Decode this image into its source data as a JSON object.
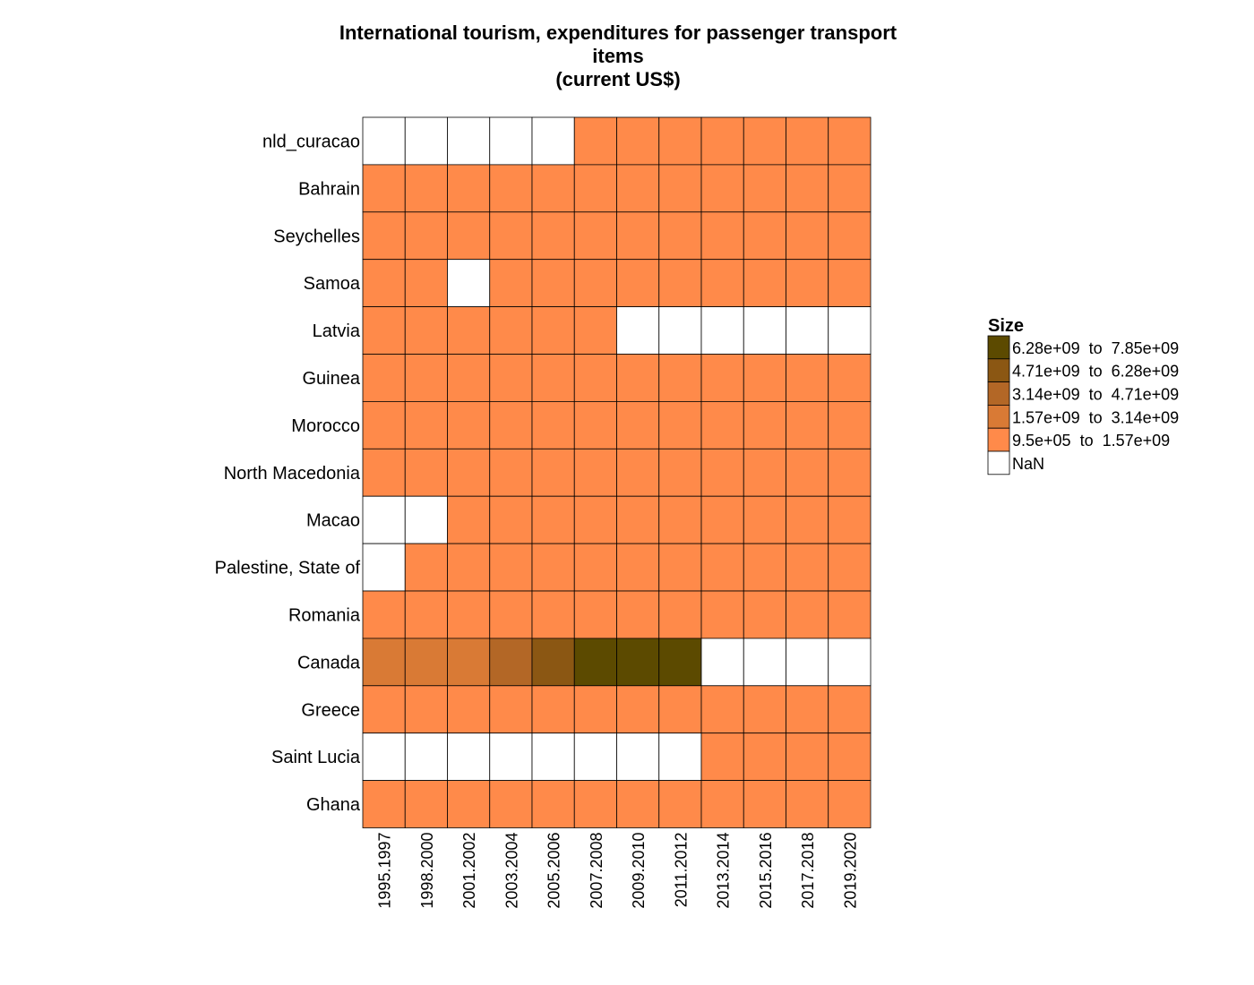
{
  "title_lines": [
    "International tourism, expenditures for passenger transport",
    "items",
    "(current US$)"
  ],
  "legend": {
    "title": "Size",
    "bins": [
      {
        "label": "6.28e+09  to  7.85e+09",
        "color": "#5c4a00"
      },
      {
        "label": "4.71e+09  to  6.28e+09",
        "color": "#8b5713"
      },
      {
        "label": "3.14e+09  to  4.71e+09",
        "color": "#b36726"
      },
      {
        "label": "1.57e+09  to  3.14e+09",
        "color": "#d97a35"
      },
      {
        "label": "9.5e+05  to  1.57e+09",
        "color": "#ff8a4a"
      },
      {
        "label": "NaN",
        "color": "#ffffff"
      }
    ]
  },
  "chart_data": {
    "type": "heatmap",
    "title": "International tourism, expenditures for passenger transport items (current US$)",
    "x_categories": [
      "1995.1997",
      "1998.2000",
      "2001.2002",
      "2003.2004",
      "2005.2006",
      "2007.2008",
      "2009.2010",
      "2011.2012",
      "2013.2014",
      "2015.2016",
      "2017.2018",
      "2019.2020"
    ],
    "y_categories": [
      "nld_curacao",
      "Bahrain",
      "Seychelles",
      "Samoa",
      "Latvia",
      "Guinea",
      "Morocco",
      "North Macedonia",
      "Macao",
      "Palestine, State of",
      "Romania",
      "Canada",
      "Greece",
      "Saint Lucia",
      "Ghana"
    ],
    "bin_index_note": "0 = 9.5e+05 to 1.57e+09, 1 = 1.57e+09 to 3.14e+09, 2 = 3.14e+09 to 4.71e+09, 3 = 4.71e+09 to 6.28e+09, 4 = 6.28e+09 to 7.85e+09, null = NaN",
    "bins": [
      [
        null,
        null,
        null,
        null,
        null,
        0,
        0,
        0,
        0,
        0,
        0,
        0
      ],
      [
        0,
        0,
        0,
        0,
        0,
        0,
        0,
        0,
        0,
        0,
        0,
        0
      ],
      [
        0,
        0,
        0,
        0,
        0,
        0,
        0,
        0,
        0,
        0,
        0,
        0
      ],
      [
        0,
        0,
        null,
        0,
        0,
        0,
        0,
        0,
        0,
        0,
        0,
        0
      ],
      [
        0,
        0,
        0,
        0,
        0,
        0,
        null,
        null,
        null,
        null,
        null,
        null
      ],
      [
        0,
        0,
        0,
        0,
        0,
        0,
        0,
        0,
        0,
        0,
        0,
        0
      ],
      [
        0,
        0,
        0,
        0,
        0,
        0,
        0,
        0,
        0,
        0,
        0,
        0
      ],
      [
        0,
        0,
        0,
        0,
        0,
        0,
        0,
        0,
        0,
        0,
        0,
        0
      ],
      [
        null,
        null,
        0,
        0,
        0,
        0,
        0,
        0,
        0,
        0,
        0,
        0
      ],
      [
        null,
        0,
        0,
        0,
        0,
        0,
        0,
        0,
        0,
        0,
        0,
        0
      ],
      [
        0,
        0,
        0,
        0,
        0,
        0,
        0,
        0,
        0,
        0,
        0,
        0
      ],
      [
        1,
        1,
        1,
        2,
        3,
        4,
        4,
        4,
        null,
        null,
        null,
        null
      ],
      [
        0,
        0,
        0,
        0,
        0,
        0,
        0,
        0,
        0,
        0,
        0,
        0
      ],
      [
        null,
        null,
        null,
        null,
        null,
        null,
        null,
        null,
        0,
        0,
        0,
        0
      ],
      [
        0,
        0,
        0,
        0,
        0,
        0,
        0,
        0,
        0,
        0,
        0,
        0
      ]
    ]
  }
}
